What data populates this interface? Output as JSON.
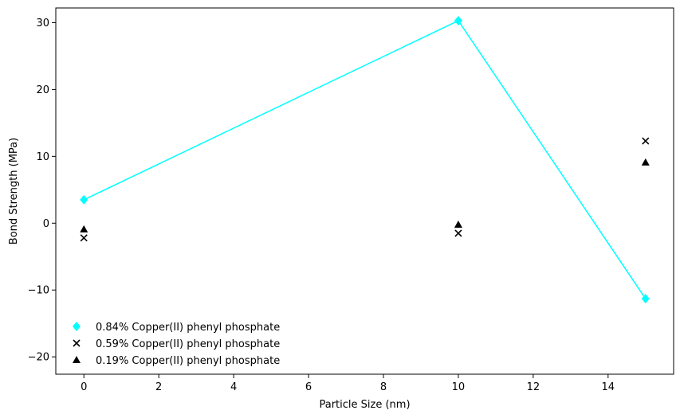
{
  "chart_data": {
    "type": "scatter",
    "title": "",
    "xlabel": "Particle Size (nm)",
    "ylabel": "Bond Strength (MPa)",
    "xlim": [
      -0.75,
      15.75
    ],
    "ylim": [
      -22.6,
      32.2
    ],
    "x_ticks": [
      0,
      2,
      4,
      6,
      8,
      10,
      12,
      14
    ],
    "y_ticks": [
      -20,
      -10,
      0,
      10,
      20,
      30
    ],
    "x_tick_labels": [
      "0",
      "2",
      "4",
      "6",
      "8",
      "10",
      "12",
      "14"
    ],
    "y_tick_labels": [
      "−20",
      "−10",
      "0",
      "10",
      "20",
      "30"
    ],
    "grid": false,
    "legend_position": "lower-left",
    "series": [
      {
        "name": "0.84% Copper(II) phenyl phosphate",
        "marker": "diamond",
        "line": true,
        "color": "#00ffff",
        "x": [
          0,
          10,
          15
        ],
        "y": [
          3.5,
          30.3,
          -11.3
        ]
      },
      {
        "name": "0.59% Copper(II) phenyl phosphate",
        "marker": "x",
        "line": false,
        "color": "#000000",
        "x": [
          0,
          10,
          15
        ],
        "y": [
          -2.2,
          -1.5,
          12.3
        ]
      },
      {
        "name": "0.19% Copper(II) phenyl phosphate",
        "marker": "triangle",
        "line": false,
        "color": "#000000",
        "x": [
          0,
          10,
          15
        ],
        "y": [
          -0.9,
          -0.2,
          9.1
        ]
      }
    ]
  }
}
